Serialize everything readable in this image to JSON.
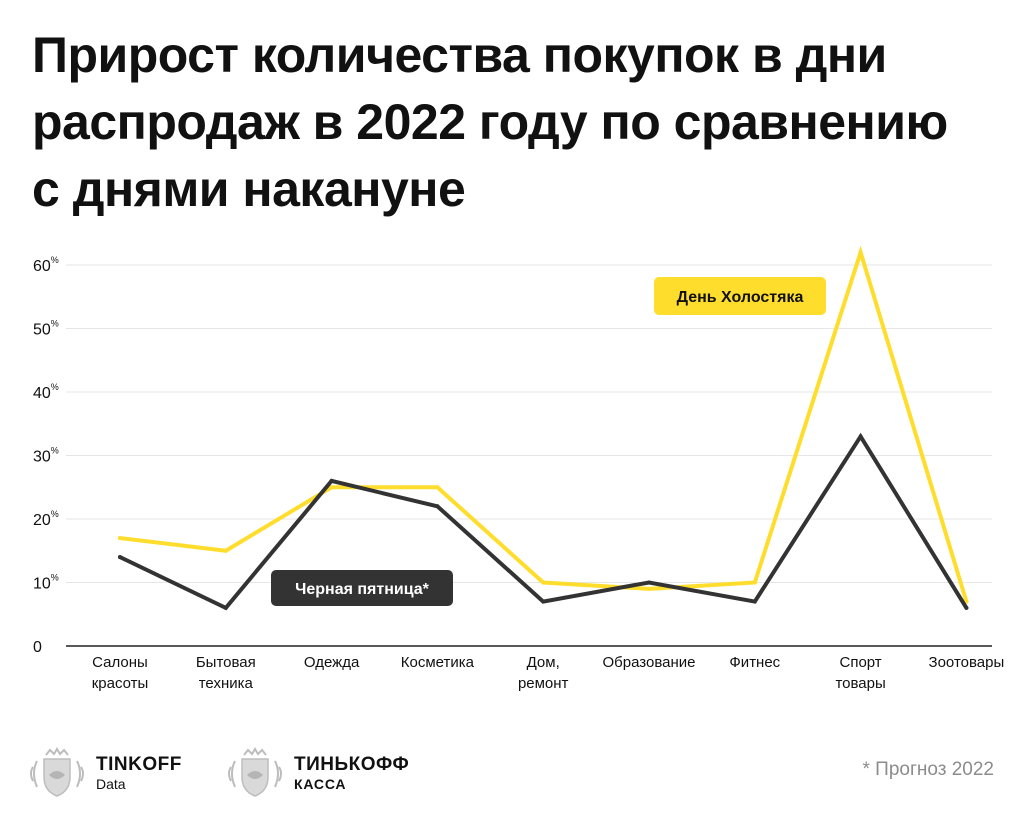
{
  "title_lines": [
    "Прирост количества покупок в дни",
    "распродаж в 2022 году по сравнению",
    "с днями накануне"
  ],
  "footnote": "* Прогноз 2022",
  "logos": [
    {
      "main": "TINKOFF",
      "sub": "Data",
      "icon": "tinkoff-coat-of-arms-icon"
    },
    {
      "main": "ТИНЬКОФФ",
      "sub": "КАССА",
      "icon": "tinkoff-coat-of-arms-icon"
    }
  ],
  "colors": {
    "yellow": "#FFDD2D",
    "dark": "#333333",
    "grid": "#E6E6E6",
    "text": "#111111"
  },
  "chart_data": {
    "type": "line",
    "categories": [
      [
        "Салоны",
        "красоты"
      ],
      [
        "Бытовая",
        "техника"
      ],
      [
        "Одежда"
      ],
      [
        "Косметика"
      ],
      [
        "Дом,",
        "ремонт"
      ],
      [
        "Образование"
      ],
      [
        "Фитнес"
      ],
      [
        "Спорт",
        "товары"
      ],
      [
        "Зоотовары"
      ]
    ],
    "yticks": [
      {
        "value": 0,
        "label": "0",
        "unit": ""
      },
      {
        "value": 10,
        "label": "10",
        "unit": "%"
      },
      {
        "value": 20,
        "label": "20",
        "unit": "%"
      },
      {
        "value": 30,
        "label": "30",
        "unit": "%"
      },
      {
        "value": 40,
        "label": "40",
        "unit": "%"
      },
      {
        "value": 50,
        "label": "50",
        "unit": "%"
      },
      {
        "value": 60,
        "label": "60",
        "unit": "%"
      }
    ],
    "ylim": [
      0,
      60
    ],
    "grid": true,
    "series": [
      {
        "name": "День Холостяка",
        "color": "yellow",
        "values": [
          17,
          15,
          25,
          25,
          10,
          9,
          10,
          62,
          7
        ]
      },
      {
        "name": "Черная пятница*",
        "color": "dark",
        "values": [
          14,
          6,
          26,
          22,
          7,
          10,
          7,
          33,
          6
        ]
      }
    ]
  }
}
